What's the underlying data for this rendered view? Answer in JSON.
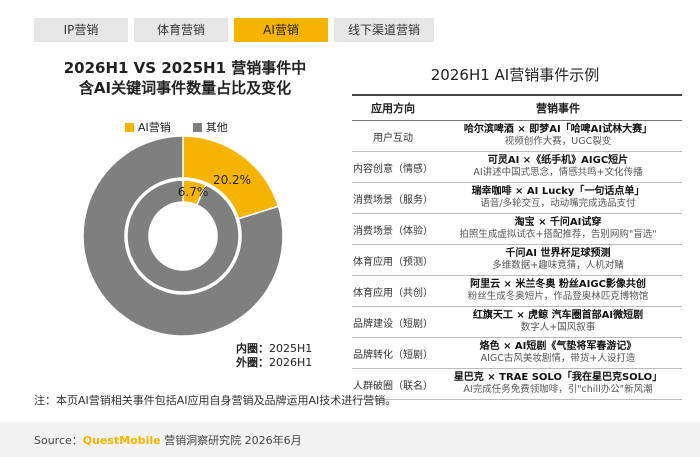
{
  "tabs": [
    "IP营销",
    "体育营销",
    "AI营销",
    "线下渠道营销"
  ],
  "active_tab": 2,
  "left": {
    "title_line1": "2026H1 VS 2025H1 营销事件中",
    "title_line2": "含AI关键词事件数量占比及变化",
    "inner_label": "内圈：",
    "inner_value": "2025H1",
    "outer_label": "外圈：",
    "outer_value": "2026H1"
  },
  "chart_data": {
    "type": "pie",
    "subtype": "nested-donut",
    "legend": [
      "AI营销",
      "其他"
    ],
    "colors": {
      "AI营销": "#f5b400",
      "其他": "#7f7f7f"
    },
    "series": [
      {
        "name": "2025H1",
        "ring": "inner",
        "values": {
          "AI营销": 6.7,
          "其他": 93.3
        }
      },
      {
        "name": "2026H1",
        "ring": "outer",
        "values": {
          "AI营销": 20.2,
          "其他": 79.8
        }
      }
    ],
    "labels": {
      "inner": "6.7%",
      "outer": "20.2%"
    },
    "legend_position": "top"
  },
  "right": {
    "title": "2026H1 AI营销事件示例",
    "col1": "应用方向",
    "col2": "营销事件",
    "rows": [
      {
        "dir": "用户互动",
        "name": "哈尔滨啤酒 × 即梦AI「哈啤AI试林大赛」",
        "desc": "视频创作大赛，UGC裂变"
      },
      {
        "dir": "内容创意（情感）",
        "name": "可灵AI ×《纸手机》AIGC短片",
        "desc": "AI讲述中国式思念，情感共鸣+文化传播"
      },
      {
        "dir": "消费场景（服务）",
        "name": "瑞幸咖啡 × AI Lucky「一句话点单」",
        "desc": "语音/多轮交互，动动嘴完成选品支付"
      },
      {
        "dir": "消费场景（体验）",
        "name": "淘宝 × 千问AI试穿",
        "desc": "拍照生成虚拟试衣+搭配推荐，告别网购\"盲选\""
      },
      {
        "dir": "体育应用（预测）",
        "name": "千问AI 世界杯足球预测",
        "desc": "多维数据+趣味竞猜，人机对赌"
      },
      {
        "dir": "体育应用（共创）",
        "name": "阿里云 × 米兰冬奥 粉丝AIGC影像共创",
        "desc": "粉丝生成冬奥短片，作品登奥林匹克博物馆"
      },
      {
        "dir": "品牌建设（短剧）",
        "name": "红旗天工 × 虎鲸 汽车圈首部AI微短剧",
        "desc": "数字人+国风叙事"
      },
      {
        "dir": "品牌转化（短剧）",
        "name": "烙色 × AI短剧《气垫将军春游记》",
        "desc": "AIGC古风美妆剧情，带货+人设打造"
      },
      {
        "dir": "人群破圈（联名）",
        "name": "星巴克 × TRAE SOLO「我在星巴克SOLO」",
        "desc": "AI完成任务免费领咖啡，引\"chill办公\"新风潮"
      }
    ]
  },
  "note": "注：本页AI营销相关事件包括AI应用自身营销及品牌运用AI技术进行营销。",
  "source_prefix": "Source：",
  "source_brand": "QuestMobile",
  "source_rest": " 营销洞察研究院 2026年6月"
}
